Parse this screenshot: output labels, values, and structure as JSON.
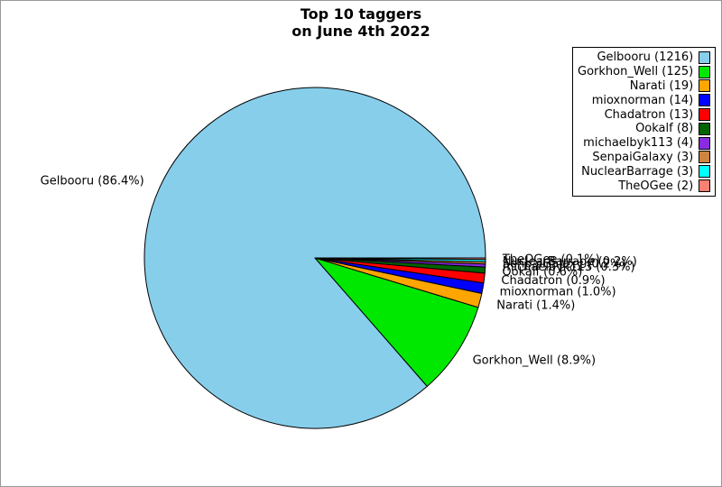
{
  "figure": {
    "background": "#ffffff",
    "border_color": "#999999"
  },
  "chart_data": {
    "type": "pie",
    "title": "Top 10 taggers\non June 4th 2022",
    "legend_position": "upper right",
    "legend_marker_side": "right",
    "start_angle_deg": 0,
    "direction": "counterclockwise",
    "wedge_edge_color": "#000000",
    "label_distance": 1.1,
    "slices": [
      {
        "name": "Gelbooru",
        "count": 1216,
        "pct": "86.4",
        "color": "#87CEEB"
      },
      {
        "name": "Gorkhon_Well",
        "count": 125,
        "pct": "8.9",
        "color": "#00E800"
      },
      {
        "name": "Narati",
        "count": 19,
        "pct": "1.4",
        "color": "#FFA500"
      },
      {
        "name": "mioxnorman",
        "count": 14,
        "pct": "1.0",
        "color": "#0000FF"
      },
      {
        "name": "Chadatron",
        "count": 13,
        "pct": "0.9",
        "color": "#FF0000"
      },
      {
        "name": "Ookalf",
        "count": 8,
        "pct": "0.6",
        "color": "#006400"
      },
      {
        "name": "michaelbyk113",
        "count": 4,
        "pct": "0.3",
        "color": "#8A2BE2"
      },
      {
        "name": "SenpaiGalaxy",
        "count": 3,
        "pct": "0.2",
        "color": "#CD853F"
      },
      {
        "name": "NuclearBarrage",
        "count": 3,
        "pct": "0.2",
        "color": "#00FFFF"
      },
      {
        "name": "TheOGee",
        "count": 2,
        "pct": "0.1",
        "color": "#FA8072"
      }
    ]
  }
}
